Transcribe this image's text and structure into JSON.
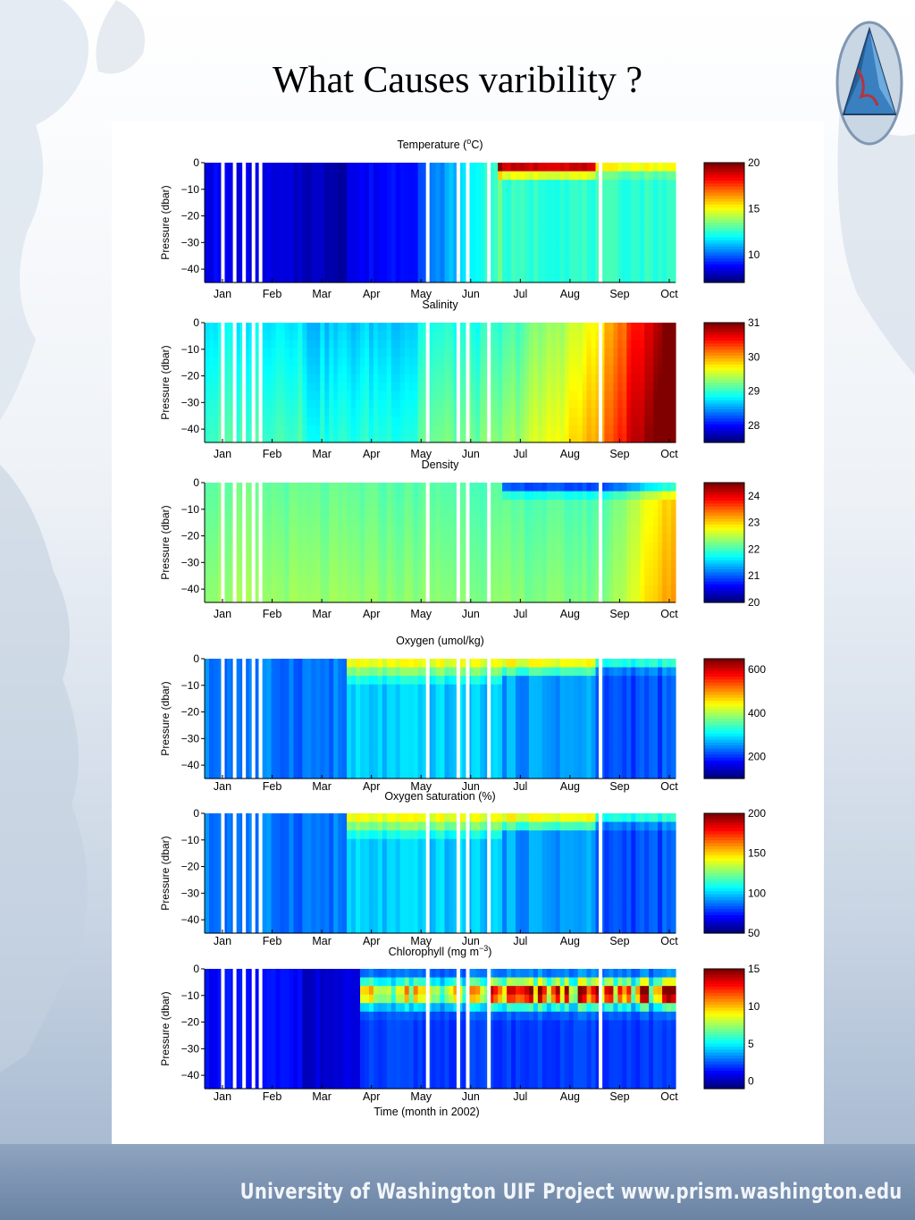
{
  "slide": {
    "title": "What Causes varibility ?",
    "footer": "University of Washington  UIF Project  www.prism.washington.edu"
  },
  "chart_data": [
    {
      "type": "heatmap",
      "title": "Temperature (°C)",
      "title_parts": {
        "base": "Temperature (",
        "sup": "o",
        "rest": "C)"
      },
      "xlabel": "",
      "ylabel": "Pressure (dbar)",
      "x_ticks": [
        "Jan",
        "Feb",
        "Mar",
        "Apr",
        "May",
        "Jun",
        "Jul",
        "Aug",
        "Sep",
        "Oct"
      ],
      "y_ticks": [
        0,
        -10,
        -20,
        -30,
        -40
      ],
      "ylim": [
        -45,
        0
      ],
      "colorbar": {
        "ticks": [
          20,
          15,
          10
        ],
        "range": [
          7,
          20
        ]
      },
      "profile": "temperature"
    },
    {
      "type": "heatmap",
      "title": "Salinity",
      "xlabel": "",
      "ylabel": "Pressure (dbar)",
      "x_ticks": [
        "Jan",
        "Feb",
        "Mar",
        "Apr",
        "May",
        "Jun",
        "Jul",
        "Aug",
        "Sep",
        "Oct"
      ],
      "y_ticks": [
        0,
        -10,
        -20,
        -30,
        -40
      ],
      "ylim": [
        -45,
        0
      ],
      "colorbar": {
        "ticks": [
          31,
          30,
          29,
          28
        ],
        "range": [
          27.5,
          31
        ]
      },
      "profile": "salinity"
    },
    {
      "type": "heatmap",
      "title": "Density",
      "xlabel": "",
      "ylabel": "Pressure (dbar)",
      "x_ticks": [
        "Jan",
        "Feb",
        "Mar",
        "Apr",
        "May",
        "Jun",
        "Jul",
        "Aug",
        "Sep",
        "Oct"
      ],
      "y_ticks": [
        0,
        -10,
        -20,
        -30,
        -40
      ],
      "ylim": [
        -45,
        0
      ],
      "colorbar": {
        "ticks": [
          24,
          23,
          22,
          21,
          20
        ],
        "range": [
          20,
          24.5
        ]
      },
      "profile": "density"
    },
    {
      "type": "heatmap",
      "title": "Oxygen (umol/kg)",
      "xlabel": "",
      "ylabel": "Pressure (dbar)",
      "x_ticks": [
        "Jan",
        "Feb",
        "Mar",
        "Apr",
        "May",
        "Jun",
        "Jul",
        "Aug",
        "Sep",
        "Oct"
      ],
      "y_ticks": [
        0,
        -10,
        -20,
        -30,
        -40
      ],
      "ylim": [
        -45,
        0
      ],
      "colorbar": {
        "ticks": [
          600,
          400,
          200
        ],
        "range": [
          100,
          650
        ]
      },
      "profile": "oxygen"
    },
    {
      "type": "heatmap",
      "title": "Oxygen saturation (%)",
      "xlabel": "",
      "ylabel": "Pressure (dbar)",
      "x_ticks": [
        "Jan",
        "Feb",
        "Mar",
        "Apr",
        "May",
        "Jun",
        "Jul",
        "Aug",
        "Sep",
        "Oct"
      ],
      "y_ticks": [
        0,
        -10,
        -20,
        -30,
        -40
      ],
      "ylim": [
        -45,
        0
      ],
      "colorbar": {
        "ticks": [
          200,
          150,
          100,
          50
        ],
        "range": [
          50,
          200
        ]
      },
      "profile": "oxygen"
    },
    {
      "type": "heatmap",
      "title": "Chlorophyll (mg m⁻³)",
      "title_parts": {
        "base": "Chlorophyll (mg m",
        "sup": "−3",
        "rest": ")"
      },
      "xlabel": "Time (month in 2002)",
      "ylabel": "Pressure (dbar)",
      "x_ticks": [
        "Jan",
        "Feb",
        "Mar",
        "Apr",
        "May",
        "Jun",
        "Jul",
        "Aug",
        "Sep",
        "Oct"
      ],
      "y_ticks": [
        0,
        -10,
        -20,
        -30,
        -40
      ],
      "ylim": [
        -45,
        0
      ],
      "colorbar": {
        "ticks": [
          15,
          10,
          5,
          0
        ],
        "range": [
          -1,
          15
        ]
      },
      "profile": "chlorophyll"
    }
  ]
}
